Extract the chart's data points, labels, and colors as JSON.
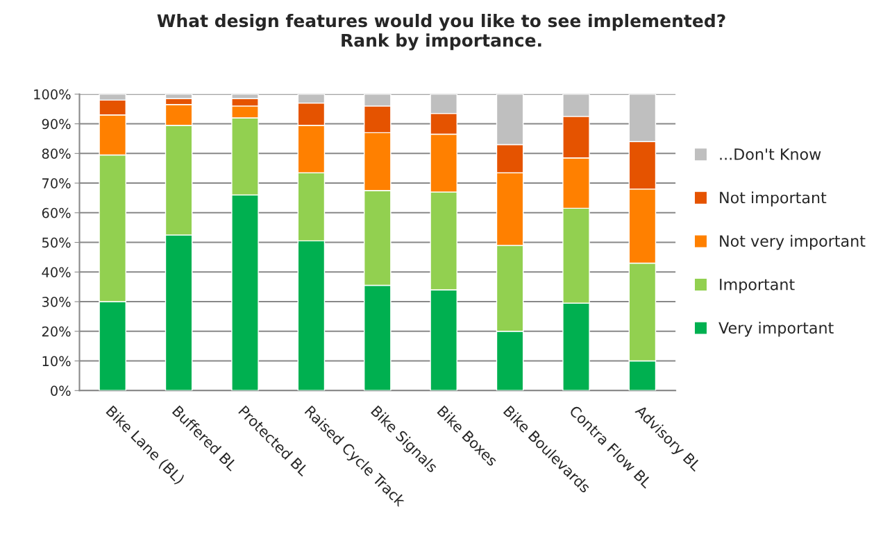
{
  "chart_data": {
    "type": "bar",
    "title": "What design features would you like to see implemented?\nRank by importance.",
    "categories": [
      "Bike Lane (BL)",
      "Buffered BL",
      "Protected BL",
      "Raised Cycle Track",
      "Bike Signals",
      "Bike Boxes",
      "Bike Boulevards",
      "Contra Flow BL",
      "Advisory BL"
    ],
    "stacked": true,
    "series": [
      {
        "name": "Very important",
        "color": "#00b050",
        "values": [
          30,
          52.5,
          66,
          50.5,
          35.5,
          34,
          20,
          29.5,
          10
        ]
      },
      {
        "name": "Important",
        "color": "#92d050",
        "values": [
          49.5,
          37,
          26,
          23,
          32,
          33,
          29,
          32,
          33
        ]
      },
      {
        "name": "Not very important",
        "color": "#ff8000",
        "values": [
          13.5,
          7,
          4,
          16,
          19.5,
          19.5,
          24.5,
          17,
          25
        ]
      },
      {
        "name": "Not important",
        "color": "#e55300",
        "values": [
          5,
          2,
          2.5,
          7.5,
          9,
          7,
          9.5,
          14,
          16
        ]
      },
      {
        "name": "...Don't Know",
        "color": "#bfbfbf",
        "values": [
          2,
          1.5,
          1.5,
          3,
          4,
          6.5,
          17,
          7.5,
          16
        ]
      }
    ],
    "ylim": [
      0,
      100
    ],
    "yticks": [
      {
        "value": 0,
        "label": "0%"
      },
      {
        "value": 10,
        "label": "10%"
      },
      {
        "value": 20,
        "label": "20%"
      },
      {
        "value": 30,
        "label": "30%"
      },
      {
        "value": 40,
        "label": "40%"
      },
      {
        "value": 50,
        "label": "50%"
      },
      {
        "value": 60,
        "label": "60%"
      },
      {
        "value": 70,
        "label": "70%"
      },
      {
        "value": 80,
        "label": "80%"
      },
      {
        "value": 90,
        "label": "90%"
      },
      {
        "value": 100,
        "label": "100%"
      }
    ],
    "grid": "y",
    "legend": "right"
  }
}
